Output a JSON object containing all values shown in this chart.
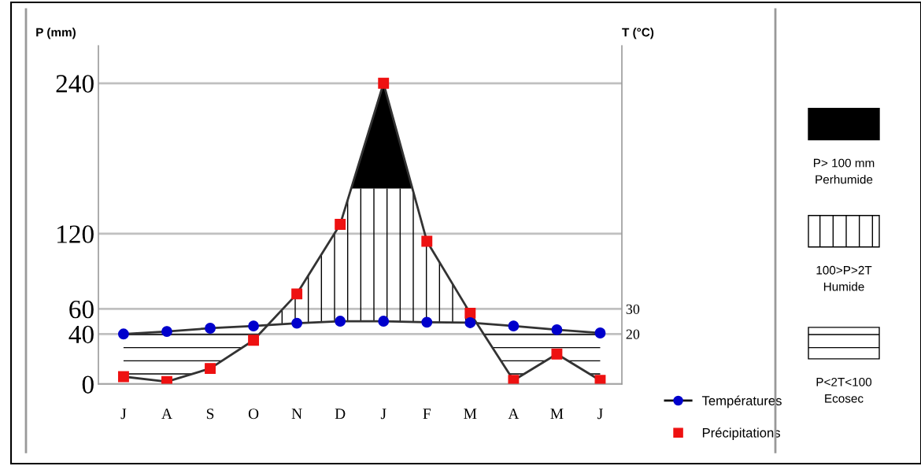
{
  "chart_data": {
    "type": "line",
    "categories": [
      "J",
      "A",
      "S",
      "O",
      "N",
      "D",
      "J",
      "F",
      "M",
      "A",
      "M",
      "J"
    ],
    "series": [
      {
        "name": "Températures",
        "color": "#0000cc",
        "axis": "y2",
        "marker": "circle",
        "values": [
          20,
          21,
          22.3,
          23.2,
          24.3,
          25.1,
          25.1,
          24.7,
          24.5,
          23.2,
          21.7,
          20.4
        ]
      },
      {
        "name": "Précipitations",
        "color": "#ee1111",
        "marker": "square",
        "values": [
          6,
          2,
          12.5,
          35,
          72,
          127.5,
          240,
          114,
          56.6,
          3,
          24,
          3
        ]
      }
    ],
    "ylabel": "P (mm)",
    "y2label": "T (°C)",
    "ylim": [
      0,
      270
    ],
    "yticks": [
      0,
      40,
      60,
      120,
      240
    ],
    "y2lim": [
      0,
      135
    ],
    "y2ticks": [
      20,
      30
    ],
    "annotations": [
      "P> 100 mm\nPerhumide",
      "100>P>2T\nHumide",
      "P<2T<100\nEcosec"
    ],
    "grid": "y",
    "legend": "bottom right"
  }
}
